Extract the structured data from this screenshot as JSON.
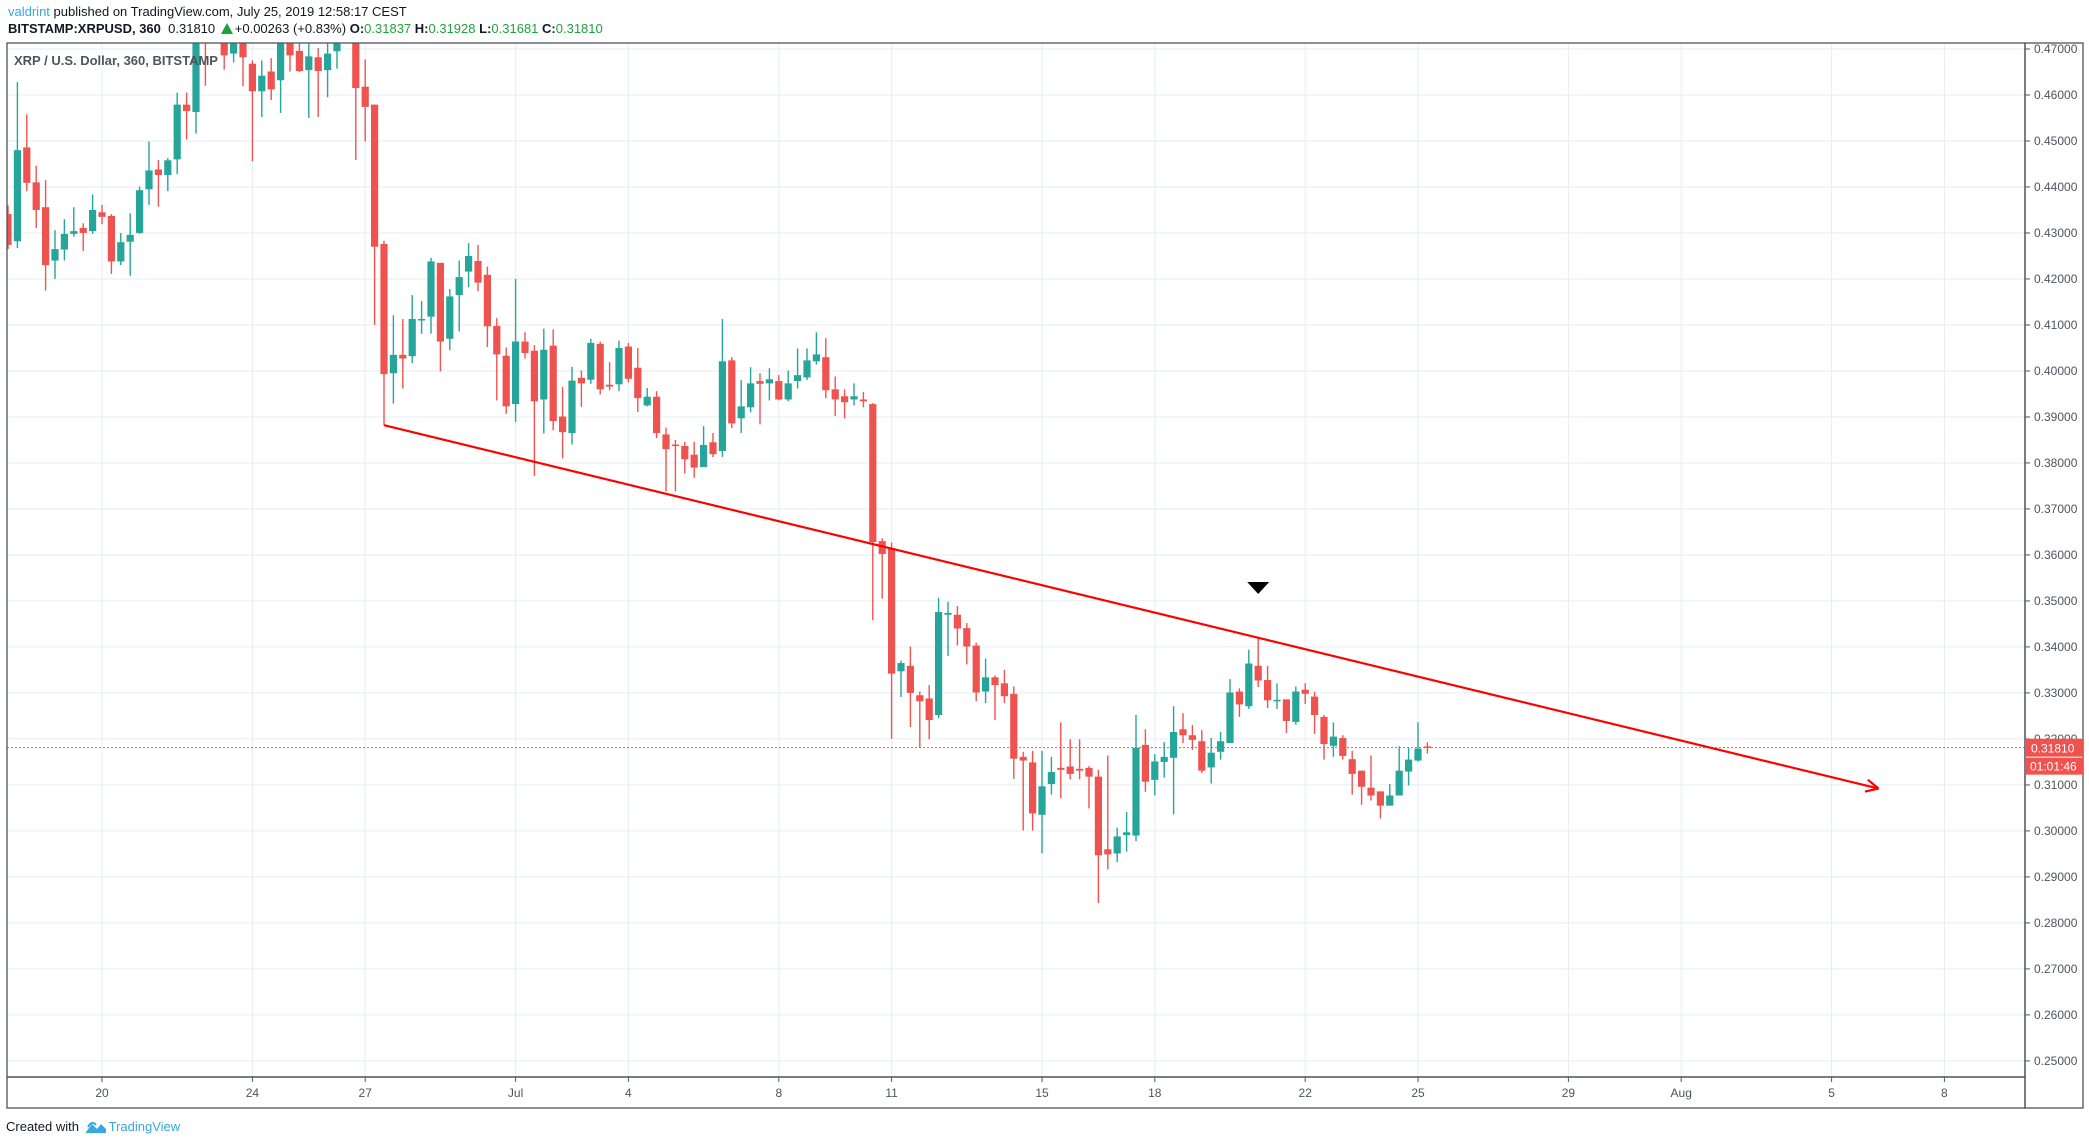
{
  "header": {
    "publisher": "valdrint",
    "published_text": "published on TradingView.com, July 25, 2019 12:58:17 CEST",
    "symbol": "BITSTAMP:XRPUSD, 360",
    "last": "0.31810",
    "change": "+0.00263 (+0.83%)",
    "change_direction": "up",
    "open_label": "O:",
    "open": "0.31837",
    "high_label": "H:",
    "high": "0.31928",
    "low_label": "L:",
    "low": "0.31681",
    "close_label": "C:",
    "close": "0.31810"
  },
  "footer": {
    "created_with": "Created with",
    "brand": "TradingView"
  },
  "colors": {
    "up": "#26a69a",
    "down": "#ef5350",
    "grid": "#e6edf3",
    "trendline": "#ff0000",
    "price_line": "#ef5350",
    "brand": "#37a9e0"
  },
  "chart_data": {
    "type": "candlestick",
    "title": "XRP / U.S. Dollar, 360, BITSTAMP",
    "interval": "360",
    "grid": true,
    "ylim": [
      0.2465,
      0.4713
    ],
    "y_ticks": [
      "0.47000",
      "0.46000",
      "0.45000",
      "0.44000",
      "0.43000",
      "0.42000",
      "0.41000",
      "0.40000",
      "0.39000",
      "0.38000",
      "0.37000",
      "0.36000",
      "0.35000",
      "0.34000",
      "0.33000",
      "0.32000",
      "0.31000",
      "0.30000",
      "0.29000",
      "0.28000",
      "0.27000",
      "0.26000",
      "0.25000"
    ],
    "x_ticks": [
      {
        "label": "20",
        "date": "2019-06-20"
      },
      {
        "label": "24",
        "date": "2019-06-24"
      },
      {
        "label": "27",
        "date": "2019-06-27"
      },
      {
        "label": "Jul",
        "date": "2019-07-01"
      },
      {
        "label": "4",
        "date": "2019-07-04"
      },
      {
        "label": "8",
        "date": "2019-07-08"
      },
      {
        "label": "11",
        "date": "2019-07-11"
      },
      {
        "label": "15",
        "date": "2019-07-15"
      },
      {
        "label": "18",
        "date": "2019-07-18"
      },
      {
        "label": "22",
        "date": "2019-07-22"
      },
      {
        "label": "25",
        "date": "2019-07-25"
      },
      {
        "label": "29",
        "date": "2019-07-29"
      },
      {
        "label": "Aug",
        "date": "2019-08-01"
      },
      {
        "label": "5",
        "date": "2019-08-05"
      },
      {
        "label": "8",
        "date": "2019-08-08"
      }
    ],
    "current_price": {
      "value": 0.3181,
      "label": "0.31810",
      "countdown": "01:01:46"
    },
    "trendline": {
      "from": {
        "time": "2019-06-27 12:00",
        "price": 0.3882
      },
      "to": {
        "time": "2019-08-06 06:00",
        "price": 0.3092
      },
      "arrow": true
    },
    "marker": {
      "shape": "arrow-down",
      "time": "2019-07-20 18:00",
      "price": 0.3528
    },
    "candles_columns": [
      "time",
      "open",
      "high",
      "low",
      "close"
    ],
    "candles": [
      [
        "2019-06-17 12:00",
        0.4341,
        0.436,
        0.4265,
        0.4274
      ],
      [
        "2019-06-17 18:00",
        0.4282,
        0.4628,
        0.4267,
        0.448
      ],
      [
        "2019-06-18 00:00",
        0.4486,
        0.4558,
        0.4391,
        0.4409
      ],
      [
        "2019-06-18 06:00",
        0.441,
        0.4446,
        0.4311,
        0.435
      ],
      [
        "2019-06-18 12:00",
        0.4356,
        0.4415,
        0.4175,
        0.423
      ],
      [
        "2019-06-18 18:00",
        0.424,
        0.4306,
        0.42,
        0.4265
      ],
      [
        "2019-06-19 00:00",
        0.4264,
        0.433,
        0.424,
        0.4298
      ],
      [
        "2019-06-19 06:00",
        0.4298,
        0.4356,
        0.4292,
        0.4304
      ],
      [
        "2019-06-19 12:00",
        0.4311,
        0.4321,
        0.4261,
        0.43
      ],
      [
        "2019-06-19 18:00",
        0.4304,
        0.4384,
        0.4298,
        0.435
      ],
      [
        "2019-06-20 00:00",
        0.4345,
        0.4361,
        0.4319,
        0.4335
      ],
      [
        "2019-06-20 06:00",
        0.4337,
        0.4341,
        0.4211,
        0.4238
      ],
      [
        "2019-06-20 12:00",
        0.4238,
        0.43,
        0.423,
        0.428
      ],
      [
        "2019-06-20 18:00",
        0.4281,
        0.4343,
        0.4207,
        0.4296
      ],
      [
        "2019-06-21 00:00",
        0.43,
        0.4401,
        0.4298,
        0.4393
      ],
      [
        "2019-06-21 06:00",
        0.4395,
        0.4499,
        0.4361,
        0.4436
      ],
      [
        "2019-06-21 12:00",
        0.4438,
        0.4459,
        0.4357,
        0.4426
      ],
      [
        "2019-06-21 18:00",
        0.4426,
        0.4463,
        0.4391,
        0.4458
      ],
      [
        "2019-06-22 00:00",
        0.446,
        0.4605,
        0.4428,
        0.4579
      ],
      [
        "2019-06-22 06:00",
        0.4579,
        0.4605,
        0.4503,
        0.4565
      ],
      [
        "2019-06-22 12:00",
        0.4563,
        0.474,
        0.4516,
        0.472
      ],
      [
        "2019-06-22 18:00",
        0.4745,
        0.478,
        0.462,
        0.4725
      ],
      [
        "2019-06-23 00:00",
        0.475,
        0.479,
        0.472,
        0.477
      ],
      [
        "2019-06-23 06:00",
        0.474,
        0.476,
        0.4655,
        0.4686
      ],
      [
        "2019-06-23 12:00",
        0.469,
        0.4745,
        0.4671,
        0.473
      ],
      [
        "2019-06-23 18:00",
        0.473,
        0.475,
        0.4619,
        0.4682
      ],
      [
        "2019-06-24 00:00",
        0.4668,
        0.4675,
        0.4456,
        0.4608
      ],
      [
        "2019-06-24 06:00",
        0.4608,
        0.4675,
        0.4552,
        0.4642
      ],
      [
        "2019-06-24 12:00",
        0.4651,
        0.468,
        0.4589,
        0.4612
      ],
      [
        "2019-06-24 18:00",
        0.4632,
        0.475,
        0.4561,
        0.472
      ],
      [
        "2019-06-25 00:00",
        0.4725,
        0.474,
        0.4651,
        0.4686
      ],
      [
        "2019-06-25 06:00",
        0.4696,
        0.472,
        0.465,
        0.4652
      ],
      [
        "2019-06-25 12:00",
        0.4654,
        0.472,
        0.455,
        0.4684
      ],
      [
        "2019-06-25 18:00",
        0.4682,
        0.4702,
        0.4552,
        0.4652
      ],
      [
        "2019-06-26 00:00",
        0.4654,
        0.4713,
        0.4595,
        0.469
      ],
      [
        "2019-06-26 06:00",
        0.4695,
        0.474,
        0.4657,
        0.4725
      ],
      [
        "2019-06-26 12:00",
        0.472,
        0.476,
        0.4712,
        0.474
      ],
      [
        "2019-06-26 18:00",
        0.474,
        0.476,
        0.4459,
        0.4615
      ],
      [
        "2019-06-27 00:00",
        0.4618,
        0.4677,
        0.4499,
        0.4574
      ],
      [
        "2019-06-27 06:00",
        0.4579,
        0.4579,
        0.41,
        0.427
      ],
      [
        "2019-06-27 12:00",
        0.4276,
        0.4283,
        0.3882,
        0.3993
      ],
      [
        "2019-06-27 18:00",
        0.3995,
        0.4121,
        0.3929,
        0.4035
      ],
      [
        "2019-06-28 00:00",
        0.4035,
        0.4113,
        0.3962,
        0.4027
      ],
      [
        "2019-06-28 06:00",
        0.4032,
        0.4165,
        0.4017,
        0.4113
      ],
      [
        "2019-06-28 12:00",
        0.4111,
        0.4152,
        0.4081,
        0.4113
      ],
      [
        "2019-06-28 18:00",
        0.4118,
        0.4246,
        0.4081,
        0.4238
      ],
      [
        "2019-06-29 00:00",
        0.4235,
        0.4235,
        0.3999,
        0.4064
      ],
      [
        "2019-06-29 06:00",
        0.407,
        0.4178,
        0.4045,
        0.4162
      ],
      [
        "2019-06-29 12:00",
        0.4165,
        0.424,
        0.4086,
        0.4204
      ],
      [
        "2019-06-29 18:00",
        0.4216,
        0.4278,
        0.4182,
        0.425
      ],
      [
        "2019-06-30 00:00",
        0.4239,
        0.4274,
        0.4173,
        0.4192
      ],
      [
        "2019-06-30 06:00",
        0.4209,
        0.4227,
        0.4052,
        0.4097
      ],
      [
        "2019-06-30 12:00",
        0.4098,
        0.4115,
        0.3936,
        0.4036
      ],
      [
        "2019-06-30 18:00",
        0.4033,
        0.4051,
        0.3907,
        0.3923
      ],
      [
        "2019-07-01 00:00",
        0.3928,
        0.42,
        0.3889,
        0.4064
      ],
      [
        "2019-07-01 06:00",
        0.4064,
        0.4084,
        0.4027,
        0.4039
      ],
      [
        "2019-07-01 12:00",
        0.4044,
        0.4056,
        0.3772,
        0.3934
      ],
      [
        "2019-07-01 18:00",
        0.3938,
        0.4092,
        0.3864,
        0.4046
      ],
      [
        "2019-07-02 00:00",
        0.4055,
        0.409,
        0.3871,
        0.3891
      ],
      [
        "2019-07-02 06:00",
        0.3901,
        0.3965,
        0.381,
        0.3867
      ],
      [
        "2019-07-02 12:00",
        0.3865,
        0.4009,
        0.384,
        0.3979
      ],
      [
        "2019-07-02 18:00",
        0.3985,
        0.4001,
        0.3922,
        0.3973
      ],
      [
        "2019-07-03 00:00",
        0.3981,
        0.407,
        0.3972,
        0.4061
      ],
      [
        "2019-07-03 06:00",
        0.4059,
        0.4064,
        0.3949,
        0.396
      ],
      [
        "2019-07-03 12:00",
        0.397,
        0.4019,
        0.3958,
        0.3966
      ],
      [
        "2019-07-03 18:00",
        0.3971,
        0.4066,
        0.3956,
        0.405
      ],
      [
        "2019-07-04 00:00",
        0.4053,
        0.4061,
        0.3975,
        0.3983
      ],
      [
        "2019-07-04 06:00",
        0.4007,
        0.405,
        0.3911,
        0.3941
      ],
      [
        "2019-07-04 12:00",
        0.3925,
        0.3963,
        0.3923,
        0.3944
      ],
      [
        "2019-07-04 18:00",
        0.3944,
        0.3956,
        0.3854,
        0.3865
      ],
      [
        "2019-07-05 00:00",
        0.3862,
        0.3877,
        0.3738,
        0.383
      ],
      [
        "2019-07-05 06:00",
        0.384,
        0.385,
        0.3738,
        0.3837
      ],
      [
        "2019-07-05 12:00",
        0.3837,
        0.3846,
        0.3777,
        0.3808
      ],
      [
        "2019-07-05 18:00",
        0.3818,
        0.3846,
        0.3768,
        0.379
      ],
      [
        "2019-07-06 00:00",
        0.3791,
        0.388,
        0.3791,
        0.3839
      ],
      [
        "2019-07-06 06:00",
        0.3845,
        0.3865,
        0.3813,
        0.3819
      ],
      [
        "2019-07-06 12:00",
        0.3826,
        0.4113,
        0.3813,
        0.4021
      ],
      [
        "2019-07-06 18:00",
        0.4023,
        0.403,
        0.3876,
        0.3886
      ],
      [
        "2019-07-07 00:00",
        0.3897,
        0.398,
        0.3865,
        0.3923
      ],
      [
        "2019-07-07 06:00",
        0.3921,
        0.4008,
        0.391,
        0.3973
      ],
      [
        "2019-07-07 12:00",
        0.3978,
        0.3995,
        0.3884,
        0.3972
      ],
      [
        "2019-07-07 18:00",
        0.3973,
        0.4006,
        0.3936,
        0.3982
      ],
      [
        "2019-07-08 00:00",
        0.3978,
        0.3991,
        0.3936,
        0.3938
      ],
      [
        "2019-07-08 06:00",
        0.3938,
        0.4001,
        0.3934,
        0.3973
      ],
      [
        "2019-07-08 12:00",
        0.3978,
        0.4049,
        0.3962,
        0.3991
      ],
      [
        "2019-07-08 18:00",
        0.3986,
        0.4049,
        0.398,
        0.4023
      ],
      [
        "2019-07-09 00:00",
        0.4021,
        0.4084,
        0.4014,
        0.4036
      ],
      [
        "2019-07-09 06:00",
        0.403,
        0.4071,
        0.3941,
        0.3958
      ],
      [
        "2019-07-09 12:00",
        0.396,
        0.3988,
        0.3902,
        0.3938
      ],
      [
        "2019-07-09 18:00",
        0.3945,
        0.396,
        0.3897,
        0.3932
      ],
      [
        "2019-07-10 00:00",
        0.3938,
        0.3973,
        0.3925,
        0.3945
      ],
      [
        "2019-07-10 06:00",
        0.3938,
        0.3954,
        0.3921,
        0.3934
      ],
      [
        "2019-07-10 12:00",
        0.3928,
        0.393,
        0.3458,
        0.3628
      ],
      [
        "2019-07-10 18:00",
        0.363,
        0.3636,
        0.3505,
        0.3602
      ],
      [
        "2019-07-11 00:00",
        0.3613,
        0.3627,
        0.32,
        0.3342
      ],
      [
        "2019-07-11 06:00",
        0.3347,
        0.337,
        0.3291,
        0.3365
      ],
      [
        "2019-07-11 12:00",
        0.3359,
        0.3401,
        0.3226,
        0.33
      ],
      [
        "2019-07-11 18:00",
        0.3295,
        0.3303,
        0.3181,
        0.3282
      ],
      [
        "2019-07-12 00:00",
        0.3288,
        0.3317,
        0.3199,
        0.3241
      ],
      [
        "2019-07-12 06:00",
        0.3252,
        0.3507,
        0.3245,
        0.3476
      ],
      [
        "2019-07-12 12:00",
        0.347,
        0.3498,
        0.338,
        0.3474
      ],
      [
        "2019-07-12 18:00",
        0.347,
        0.3489,
        0.3403,
        0.344
      ],
      [
        "2019-07-13 00:00",
        0.3441,
        0.3452,
        0.3362,
        0.3401
      ],
      [
        "2019-07-13 06:00",
        0.3403,
        0.3409,
        0.3282,
        0.3301
      ],
      [
        "2019-07-13 12:00",
        0.3303,
        0.3375,
        0.3278,
        0.3334
      ],
      [
        "2019-07-13 18:00",
        0.3334,
        0.3338,
        0.3241,
        0.3317
      ],
      [
        "2019-07-14 00:00",
        0.3321,
        0.335,
        0.3278,
        0.3293
      ],
      [
        "2019-07-14 06:00",
        0.3298,
        0.3314,
        0.3113,
        0.3157
      ],
      [
        "2019-07-14 12:00",
        0.3161,
        0.3172,
        0.3001,
        0.3153
      ],
      [
        "2019-07-14 18:00",
        0.3149,
        0.3174,
        0.3001,
        0.3038
      ],
      [
        "2019-07-15 00:00",
        0.3035,
        0.3174,
        0.2951,
        0.3097
      ],
      [
        "2019-07-15 06:00",
        0.3102,
        0.3161,
        0.3079,
        0.3128
      ],
      [
        "2019-07-15 12:00",
        0.3137,
        0.3236,
        0.3071,
        0.3133
      ],
      [
        "2019-07-15 18:00",
        0.314,
        0.3199,
        0.3112,
        0.3124
      ],
      [
        "2019-07-16 00:00",
        0.3135,
        0.3199,
        0.3112,
        0.3131
      ],
      [
        "2019-07-16 06:00",
        0.3137,
        0.3141,
        0.3049,
        0.3118
      ],
      [
        "2019-07-16 12:00",
        0.3118,
        0.3133,
        0.2843,
        0.2947
      ],
      [
        "2019-07-16 18:00",
        0.296,
        0.3164,
        0.2916,
        0.2949
      ],
      [
        "2019-07-17 00:00",
        0.2951,
        0.3007,
        0.2932,
        0.2988
      ],
      [
        "2019-07-17 06:00",
        0.2991,
        0.3041,
        0.2955,
        0.2997
      ],
      [
        "2019-07-17 12:00",
        0.299,
        0.3252,
        0.2978,
        0.3181
      ],
      [
        "2019-07-17 18:00",
        0.3187,
        0.3221,
        0.3085,
        0.3107
      ],
      [
        "2019-07-18 00:00",
        0.3111,
        0.3167,
        0.3077,
        0.3151
      ],
      [
        "2019-07-18 06:00",
        0.315,
        0.3193,
        0.3116,
        0.3161
      ],
      [
        "2019-07-18 12:00",
        0.3159,
        0.3271,
        0.3036,
        0.3215
      ],
      [
        "2019-07-18 18:00",
        0.3221,
        0.3256,
        0.3191,
        0.3208
      ],
      [
        "2019-07-19 00:00",
        0.3208,
        0.323,
        0.3176,
        0.3198
      ],
      [
        "2019-07-19 06:00",
        0.3195,
        0.3219,
        0.3126,
        0.3131
      ],
      [
        "2019-07-19 12:00",
        0.3138,
        0.3202,
        0.3103,
        0.317
      ],
      [
        "2019-07-19 18:00",
        0.3172,
        0.3215,
        0.3155,
        0.3195
      ],
      [
        "2019-07-20 00:00",
        0.3191,
        0.333,
        0.3191,
        0.3301
      ],
      [
        "2019-07-20 06:00",
        0.3303,
        0.331,
        0.3248,
        0.3275
      ],
      [
        "2019-07-20 12:00",
        0.3271,
        0.3394,
        0.3265,
        0.3364
      ],
      [
        "2019-07-20 18:00",
        0.3359,
        0.3422,
        0.3313,
        0.3327
      ],
      [
        "2019-07-21 00:00",
        0.3328,
        0.3359,
        0.3267,
        0.3284
      ],
      [
        "2019-07-21 06:00",
        0.3283,
        0.3321,
        0.3265,
        0.3285
      ],
      [
        "2019-07-21 12:00",
        0.3286,
        0.3286,
        0.3213,
        0.3239
      ],
      [
        "2019-07-21 18:00",
        0.3237,
        0.3314,
        0.3231,
        0.3303
      ],
      [
        "2019-07-22 00:00",
        0.3307,
        0.3321,
        0.3276,
        0.3298
      ],
      [
        "2019-07-22 06:00",
        0.3292,
        0.3303,
        0.3211,
        0.3252
      ],
      [
        "2019-07-22 12:00",
        0.3248,
        0.3252,
        0.3155,
        0.3189
      ],
      [
        "2019-07-22 18:00",
        0.3185,
        0.3236,
        0.3161,
        0.3205
      ],
      [
        "2019-07-23 00:00",
        0.3202,
        0.3208,
        0.3155,
        0.3163
      ],
      [
        "2019-07-23 06:00",
        0.3156,
        0.3174,
        0.3079,
        0.3124
      ],
      [
        "2019-07-23 12:00",
        0.3131,
        0.3131,
        0.3057,
        0.3096
      ],
      [
        "2019-07-23 18:00",
        0.3094,
        0.3164,
        0.3066,
        0.3077
      ],
      [
        "2019-07-24 00:00",
        0.3086,
        0.3086,
        0.3027,
        0.3055
      ],
      [
        "2019-07-24 06:00",
        0.3055,
        0.3102,
        0.3055,
        0.3077
      ],
      [
        "2019-07-24 12:00",
        0.3077,
        0.3184,
        0.3077,
        0.3131
      ],
      [
        "2019-07-24 18:00",
        0.3129,
        0.3181,
        0.3099,
        0.3155
      ],
      [
        "2019-07-25 00:00",
        0.3153,
        0.3236,
        0.3151,
        0.3179
      ],
      [
        "2019-07-25 06:00",
        0.31837,
        0.31928,
        0.31681,
        0.3181
      ]
    ]
  }
}
